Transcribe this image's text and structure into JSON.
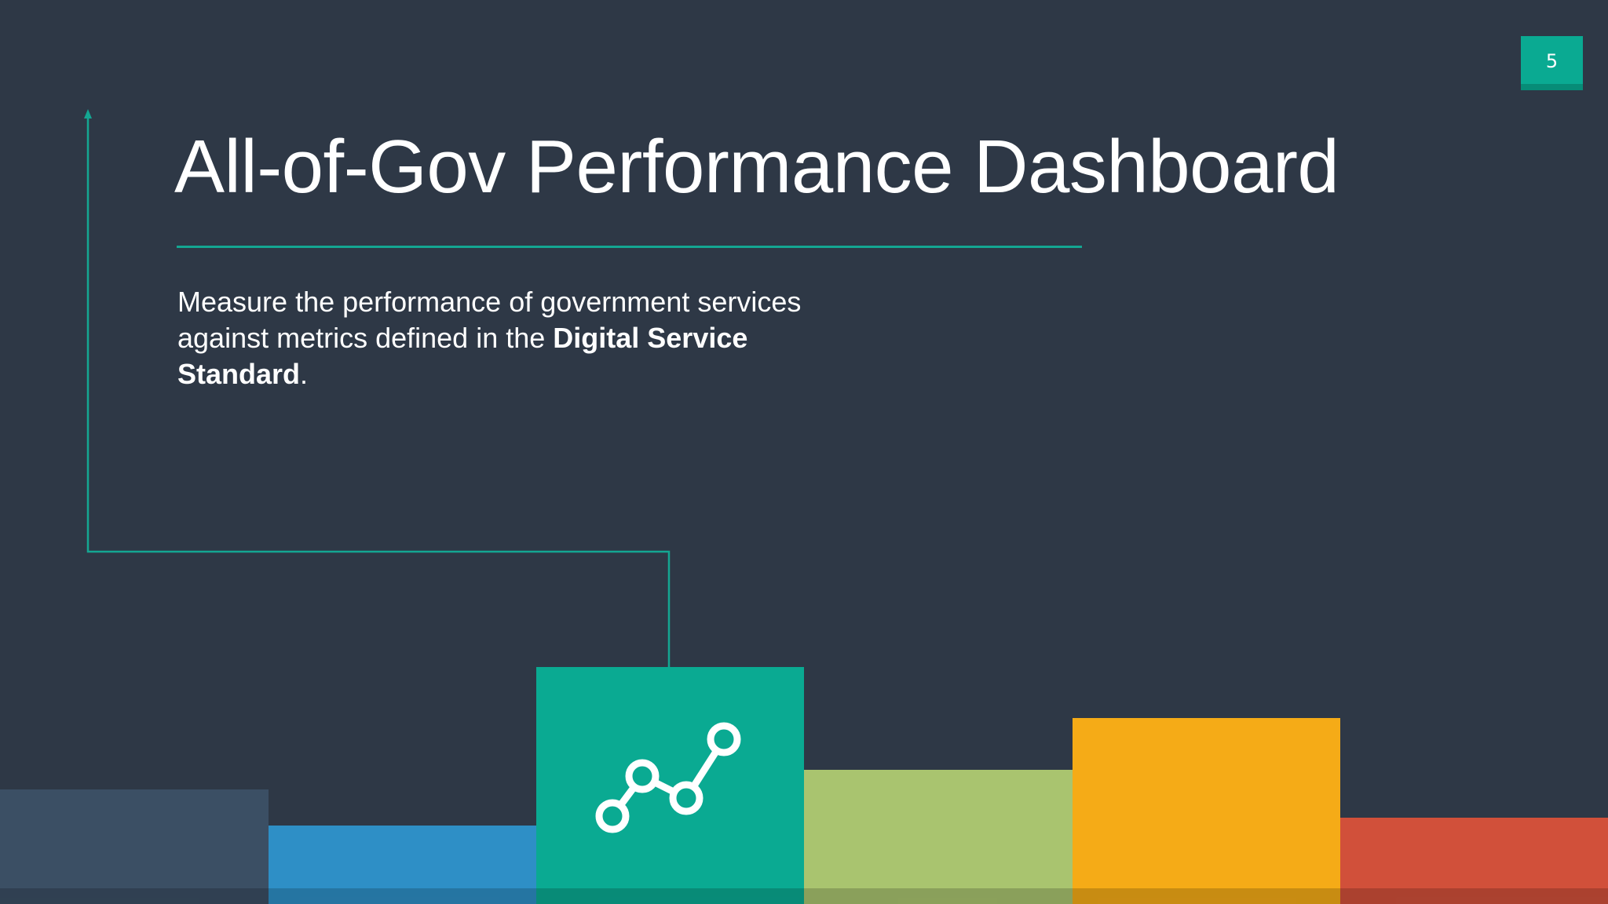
{
  "slide": {
    "page_number": "5",
    "title": "All-of-Gov Performance Dashboard",
    "subtitle": {
      "text_before": "Measure the performance of government services against metrics defined in the ",
      "bold_1": "Digital Service",
      "text_space": " ",
      "bold_2": "Standard",
      "text_after": "."
    }
  },
  "decor": {
    "icon": "line-chart-icon",
    "colors": {
      "background": "#2e3846",
      "accent": "#0aaa92",
      "slate": "#3b4f64",
      "blue": "#2e8fc6",
      "teal": "#0aaa92",
      "green": "#a9c46f",
      "orange": "#f5ab17",
      "red": "#d1503a"
    }
  }
}
